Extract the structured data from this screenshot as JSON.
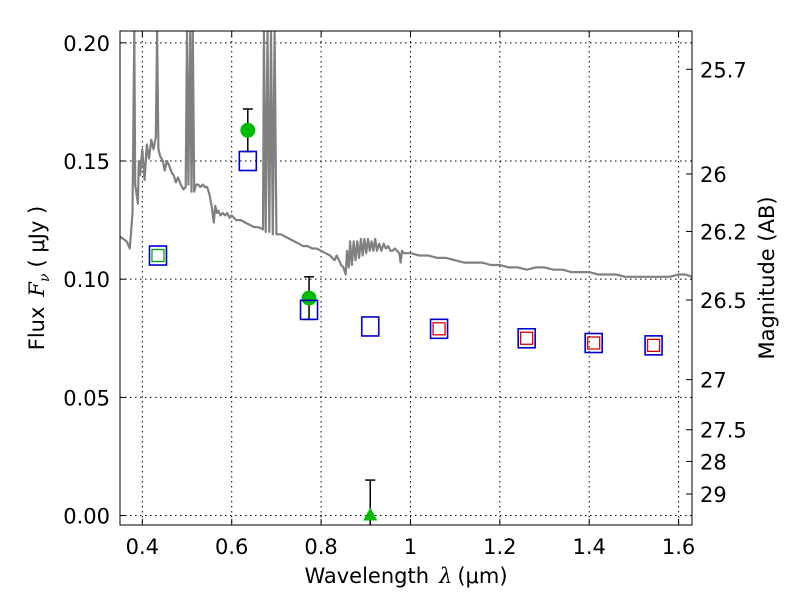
{
  "chart_data": {
    "type": "scatter",
    "xlabel": "Wavelength",
    "xlabel_symbol": "λ",
    "xlabel_unit": "(μm)",
    "ylabel": "Flux",
    "ylabel_symbol": "F",
    "ylabel_subscript": "ν",
    "ylabel_unit": "( μJy )",
    "y2label": "Magnitude (AB)",
    "xlim": [
      0.35,
      1.63
    ],
    "ylim": [
      -0.004,
      0.205
    ],
    "grid": true,
    "x_ticks": [
      0.4,
      0.6,
      0.8,
      1.0,
      1.2,
      1.4,
      1.6
    ],
    "x_tick_labels": [
      "0.4",
      "0.6",
      "0.8",
      "1",
      "1.2",
      "1.4",
      "1.6"
    ],
    "y_ticks": [
      0.0,
      0.05,
      0.1,
      0.15,
      0.2
    ],
    "y_tick_labels": [
      "0.00",
      "0.05",
      "0.10",
      "0.15",
      "0.20"
    ],
    "y2_ticks": [
      {
        "label": "25.7",
        "flux": 0.1888
      },
      {
        "label": "26",
        "flux": 0.1445
      },
      {
        "label": "26.2",
        "flux": 0.1202
      },
      {
        "label": "26.5",
        "flux": 0.0912
      },
      {
        "label": "27",
        "flux": 0.0575
      },
      {
        "label": "27.5",
        "flux": 0.0363
      },
      {
        "label": "28",
        "flux": 0.0229
      },
      {
        "label": "29",
        "flux": 0.0091
      }
    ],
    "colors": {
      "sed": "#808080",
      "observed": "#00bb00",
      "model_box": "#0000cc",
      "model_small_green": "#00aa00",
      "model_small_red": "#dd0000",
      "errorbar": "#000000",
      "grid": "#000000"
    },
    "series": [
      {
        "marker": "circle",
        "color": "#00bb00",
        "points": [
          {
            "x": 0.636,
            "y": 0.163,
            "yerr": 0.009
          },
          {
            "x": 0.773,
            "y": 0.092,
            "yerr": 0.009
          }
        ]
      },
      {
        "marker": "triangle",
        "color": "#00bb00",
        "points": [
          {
            "x": 0.91,
            "y": 0.0,
            "yerr": 0.015
          }
        ]
      },
      {
        "marker": "open-square",
        "color": "#0000cc",
        "points": [
          {
            "x": 0.435,
            "y": 0.11
          },
          {
            "x": 0.636,
            "y": 0.15
          },
          {
            "x": 0.773,
            "y": 0.087
          },
          {
            "x": 0.91,
            "y": 0.08
          },
          {
            "x": 1.064,
            "y": 0.079
          },
          {
            "x": 1.26,
            "y": 0.075
          },
          {
            "x": 1.41,
            "y": 0.073
          },
          {
            "x": 1.544,
            "y": 0.072
          }
        ]
      },
      {
        "marker": "small-open-square",
        "color": "#00aa00",
        "points": [
          {
            "x": 0.435,
            "y": 0.11
          }
        ]
      },
      {
        "marker": "small-open-square",
        "color": "#dd0000",
        "points": [
          {
            "x": 1.064,
            "y": 0.079
          },
          {
            "x": 1.26,
            "y": 0.075
          },
          {
            "x": 1.41,
            "y": 0.073
          },
          {
            "x": 1.544,
            "y": 0.072
          }
        ]
      },
      {
        "type": "line",
        "color": "#808080",
        "points": [
          [
            0.35,
            0.118
          ],
          [
            0.365,
            0.116
          ],
          [
            0.372,
            0.113
          ],
          [
            0.378,
            0.128
          ],
          [
            0.382,
            0.205
          ],
          [
            0.384,
            0.14
          ],
          [
            0.39,
            0.132
          ],
          [
            0.392,
            0.15
          ],
          [
            0.395,
            0.144
          ],
          [
            0.4,
            0.155
          ],
          [
            0.405,
            0.142
          ],
          [
            0.41,
            0.157
          ],
          [
            0.415,
            0.151
          ],
          [
            0.42,
            0.159
          ],
          [
            0.425,
            0.155
          ],
          [
            0.43,
            0.16
          ],
          [
            0.433,
            0.205
          ],
          [
            0.436,
            0.155
          ],
          [
            0.44,
            0.152
          ],
          [
            0.446,
            0.15
          ],
          [
            0.45,
            0.146
          ],
          [
            0.455,
            0.15
          ],
          [
            0.46,
            0.148
          ],
          [
            0.466,
            0.145
          ],
          [
            0.47,
            0.144
          ],
          [
            0.475,
            0.141
          ],
          [
            0.48,
            0.143
          ],
          [
            0.486,
            0.14
          ],
          [
            0.492,
            0.138
          ],
          [
            0.497,
            0.139
          ],
          [
            0.5,
            0.205
          ],
          [
            0.503,
            0.14
          ],
          [
            0.507,
            0.205
          ],
          [
            0.51,
            0.137
          ],
          [
            0.513,
            0.205
          ],
          [
            0.516,
            0.137
          ],
          [
            0.52,
            0.14
          ],
          [
            0.525,
            0.14
          ],
          [
            0.53,
            0.139
          ],
          [
            0.535,
            0.14
          ],
          [
            0.54,
            0.139
          ],
          [
            0.545,
            0.139
          ],
          [
            0.55,
            0.136
          ],
          [
            0.555,
            0.131
          ],
          [
            0.56,
            0.124
          ],
          [
            0.563,
            0.131
          ],
          [
            0.567,
            0.128
          ],
          [
            0.57,
            0.129
          ],
          [
            0.575,
            0.127
          ],
          [
            0.58,
            0.128
          ],
          [
            0.585,
            0.127
          ],
          [
            0.59,
            0.128
          ],
          [
            0.595,
            0.126
          ],
          [
            0.6,
            0.127
          ],
          [
            0.61,
            0.125
          ],
          [
            0.62,
            0.125
          ],
          [
            0.63,
            0.124
          ],
          [
            0.64,
            0.123
          ],
          [
            0.65,
            0.122
          ],
          [
            0.66,
            0.122
          ],
          [
            0.67,
            0.121
          ],
          [
            0.672,
            0.205
          ],
          [
            0.676,
            0.12
          ],
          [
            0.68,
            0.205
          ],
          [
            0.684,
            0.12
          ],
          [
            0.688,
            0.205
          ],
          [
            0.692,
            0.119
          ],
          [
            0.696,
            0.205
          ],
          [
            0.7,
            0.119
          ],
          [
            0.71,
            0.119
          ],
          [
            0.72,
            0.118
          ],
          [
            0.73,
            0.117
          ],
          [
            0.74,
            0.116
          ],
          [
            0.75,
            0.115
          ],
          [
            0.76,
            0.114
          ],
          [
            0.77,
            0.114
          ],
          [
            0.78,
            0.113
          ],
          [
            0.79,
            0.113
          ],
          [
            0.8,
            0.112
          ],
          [
            0.81,
            0.111
          ],
          [
            0.82,
            0.11
          ],
          [
            0.83,
            0.108
          ],
          [
            0.835,
            0.11
          ],
          [
            0.84,
            0.108
          ],
          [
            0.845,
            0.106
          ],
          [
            0.85,
            0.105
          ],
          [
            0.855,
            0.102
          ],
          [
            0.858,
            0.112
          ],
          [
            0.862,
            0.105
          ],
          [
            0.865,
            0.116
          ],
          [
            0.869,
            0.106
          ],
          [
            0.873,
            0.116
          ],
          [
            0.877,
            0.108
          ],
          [
            0.881,
            0.116
          ],
          [
            0.885,
            0.109
          ],
          [
            0.889,
            0.117
          ],
          [
            0.893,
            0.11
          ],
          [
            0.897,
            0.117
          ],
          [
            0.901,
            0.111
          ],
          [
            0.905,
            0.117
          ],
          [
            0.909,
            0.112
          ],
          [
            0.913,
            0.116
          ],
          [
            0.917,
            0.112
          ],
          [
            0.921,
            0.117
          ],
          [
            0.925,
            0.112
          ],
          [
            0.93,
            0.115
          ],
          [
            0.935,
            0.112
          ],
          [
            0.94,
            0.115
          ],
          [
            0.945,
            0.113
          ],
          [
            0.95,
            0.114
          ],
          [
            0.955,
            0.112
          ],
          [
            0.96,
            0.112
          ],
          [
            0.965,
            0.113
          ],
          [
            0.97,
            0.112
          ],
          [
            0.975,
            0.111
          ],
          [
            0.978,
            0.107
          ],
          [
            0.981,
            0.112
          ],
          [
            0.985,
            0.111
          ],
          [
            0.99,
            0.111
          ],
          [
            1.0,
            0.111
          ],
          [
            1.02,
            0.11
          ],
          [
            1.04,
            0.11
          ],
          [
            1.06,
            0.109
          ],
          [
            1.08,
            0.109
          ],
          [
            1.1,
            0.108
          ],
          [
            1.12,
            0.107
          ],
          [
            1.14,
            0.107
          ],
          [
            1.16,
            0.107
          ],
          [
            1.18,
            0.106
          ],
          [
            1.2,
            0.106
          ],
          [
            1.22,
            0.105
          ],
          [
            1.24,
            0.105
          ],
          [
            1.26,
            0.104
          ],
          [
            1.28,
            0.105
          ],
          [
            1.3,
            0.105
          ],
          [
            1.32,
            0.104
          ],
          [
            1.34,
            0.104
          ],
          [
            1.36,
            0.103
          ],
          [
            1.38,
            0.103
          ],
          [
            1.4,
            0.103
          ],
          [
            1.42,
            0.102
          ],
          [
            1.44,
            0.102
          ],
          [
            1.46,
            0.102
          ],
          [
            1.48,
            0.101
          ],
          [
            1.5,
            0.101
          ],
          [
            1.52,
            0.101
          ],
          [
            1.54,
            0.101
          ],
          [
            1.56,
            0.101
          ],
          [
            1.58,
            0.101
          ],
          [
            1.6,
            0.102
          ],
          [
            1.615,
            0.102
          ],
          [
            1.63,
            0.101
          ]
        ]
      }
    ]
  }
}
